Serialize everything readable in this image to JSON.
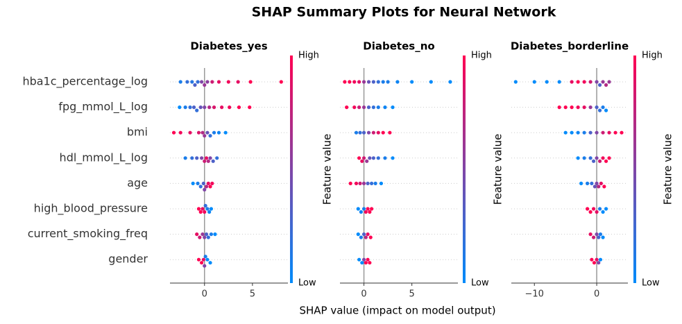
{
  "title": "SHAP Summary Plots for Neural Network",
  "xlabel": "SHAP value (impact on model output)",
  "features": [
    "hba1c_percentage_log",
    "fpg_mmol_L_log",
    "bmi",
    "hdl_mmol_L_log",
    "age",
    "high_blood_pressure",
    "current_smoking_freq",
    "gender"
  ],
  "colorbar": {
    "label": "Feature value",
    "high": "High",
    "low": "Low",
    "colormap": [
      "#008bfb",
      "#ff0052"
    ]
  },
  "chart_data": [
    {
      "type": "beeswarm",
      "title": "Diabetes_yes",
      "xlim": [
        -3.6,
        8.7
      ],
      "xticks": [
        0,
        5
      ],
      "series": [
        {
          "shap": [
            -2.5,
            -1.8,
            -1.3,
            -1,
            -0.7,
            -0.3,
            0,
            0.3,
            0.8,
            1.5,
            2.5,
            3.5,
            4.8,
            8
          ],
          "feature_value": [
            0.1,
            0.2,
            0.15,
            0.3,
            0.2,
            0.5,
            0.6,
            0.55,
            0.8,
            0.9,
            0.95,
            0.9,
            1,
            1
          ]
        },
        {
          "shap": [
            -2.6,
            -2,
            -1.5,
            -1.1,
            -0.8,
            -0.4,
            0,
            0.5,
            1,
            1.8,
            2.6,
            3.6,
            4.7
          ],
          "feature_value": [
            0,
            0.1,
            0.2,
            0.3,
            0.2,
            0.4,
            0.5,
            0.7,
            0.85,
            0.9,
            0.95,
            1,
            1
          ]
        },
        {
          "shap": [
            -3.2,
            -2.5,
            -1.5,
            -0.6,
            -0.2,
            0,
            0.3,
            0.6,
            1,
            1.5,
            2.2
          ],
          "feature_value": [
            1,
            0.95,
            0.9,
            0.85,
            0.7,
            0.6,
            0.4,
            0.2,
            0.1,
            0.05,
            0
          ]
        },
        {
          "shap": [
            -2,
            -1.3,
            -0.8,
            -0.3,
            0,
            0.2,
            0.4,
            0.6,
            0.9,
            1.3
          ],
          "feature_value": [
            0.1,
            0.2,
            0.3,
            0.5,
            0.8,
            0.9,
            0.7,
            0.5,
            0.3,
            0.2
          ]
        },
        {
          "shap": [
            -1.2,
            -0.7,
            -0.4,
            -0.1,
            0,
            0.2,
            0.4,
            0.6,
            0.8
          ],
          "feature_value": [
            0,
            0.1,
            0.2,
            0.3,
            0.5,
            0.7,
            0.9,
            1,
            0.95
          ]
        },
        {
          "shap": [
            -0.6,
            -0.4,
            -0.2,
            0,
            0.1,
            0.3,
            0.5,
            0.7
          ],
          "feature_value": [
            1,
            1,
            0.9,
            0.95,
            0.2,
            0.1,
            0.05,
            0
          ]
        },
        {
          "shap": [
            -0.8,
            -0.5,
            -0.2,
            0,
            0.2,
            0.4,
            0.7,
            1.1
          ],
          "feature_value": [
            0.9,
            0.8,
            0.6,
            0.5,
            0.3,
            0.2,
            0.1,
            0
          ]
        },
        {
          "shap": [
            -0.6,
            -0.3,
            -0.1,
            0,
            0.1,
            0.3,
            0.6
          ],
          "feature_value": [
            1,
            1,
            0.9,
            0.5,
            0.1,
            0,
            0
          ]
        }
      ]
    },
    {
      "type": "beeswarm",
      "title": "Diabetes_no",
      "xlim": [
        -2.5,
        9.8
      ],
      "xticks": [
        0,
        5
      ],
      "series": [
        {
          "shap": [
            -2,
            -1.5,
            -1,
            -0.5,
            0,
            0.5,
            1,
            1.5,
            2,
            2.5,
            3.5,
            5,
            7,
            9
          ],
          "feature_value": [
            1,
            1,
            0.95,
            0.9,
            0.6,
            0.4,
            0.3,
            0.2,
            0.1,
            0.1,
            0.05,
            0,
            0,
            0
          ]
        },
        {
          "shap": [
            -1.8,
            -1,
            -0.5,
            0,
            0.5,
            1,
            1.5,
            2.2,
            3
          ],
          "feature_value": [
            1,
            0.95,
            0.8,
            0.6,
            0.3,
            0.2,
            0.1,
            0.05,
            0
          ]
        },
        {
          "shap": [
            -0.8,
            -0.4,
            0,
            0.5,
            1,
            1.5,
            2,
            2.7
          ],
          "feature_value": [
            0.1,
            0.2,
            0.3,
            0.5,
            0.8,
            0.9,
            1,
            1
          ]
        },
        {
          "shap": [
            -0.5,
            -0.2,
            0,
            0.3,
            0.6,
            1,
            1.5,
            2.2,
            3
          ],
          "feature_value": [
            1,
            0.9,
            0.8,
            0.6,
            0.4,
            0.3,
            0.2,
            0.1,
            0
          ]
        },
        {
          "shap": [
            -1.4,
            -0.8,
            -0.4,
            0,
            0.4,
            0.8,
            1.2,
            1.8
          ],
          "feature_value": [
            1,
            0.95,
            0.8,
            0.6,
            0.3,
            0.2,
            0.1,
            0
          ]
        },
        {
          "shap": [
            -0.6,
            -0.3,
            0,
            0.2,
            0.4,
            0.6,
            0.8
          ],
          "feature_value": [
            0,
            0.05,
            0.1,
            0.95,
            1,
            1,
            1
          ]
        },
        {
          "shap": [
            -0.6,
            -0.3,
            0,
            0.2,
            0.4,
            0.7
          ],
          "feature_value": [
            0,
            0.1,
            0.3,
            0.7,
            0.9,
            1
          ]
        },
        {
          "shap": [
            -0.5,
            -0.2,
            0,
            0.2,
            0.4,
            0.6
          ],
          "feature_value": [
            0,
            0,
            0.5,
            1,
            1,
            1
          ]
        }
      ]
    },
    {
      "type": "beeswarm",
      "title": "Diabetes_borderline",
      "xlim": [
        -13.7,
        5
      ],
      "xticks": [
        {
          "value": -10,
          "label": "−10"
        },
        0
      ],
      "series": [
        {
          "shap": [
            -13,
            -10,
            -8,
            -6,
            -4,
            -3,
            -2,
            -1,
            0,
            0.5,
            1,
            1.5,
            2
          ],
          "feature_value": [
            0,
            0,
            0,
            0,
            0.9,
            1,
            0.95,
            0.8,
            0.5,
            0.3,
            0.6,
            0.7,
            0.6
          ]
        },
        {
          "shap": [
            -6,
            -5,
            -4,
            -3,
            -2,
            -1,
            0,
            0.5,
            1,
            1.5
          ],
          "feature_value": [
            1,
            1,
            1,
            0.95,
            0.9,
            0.6,
            0.3,
            0.2,
            0.1,
            0
          ]
        },
        {
          "shap": [
            -5,
            -4,
            -3,
            -2,
            -1,
            0,
            1,
            2,
            3,
            4
          ],
          "feature_value": [
            0,
            0,
            0.05,
            0.1,
            0.3,
            0.5,
            0.8,
            0.9,
            1,
            1
          ]
        },
        {
          "shap": [
            -3,
            -2,
            -1,
            -0.5,
            0,
            0.5,
            1,
            1.5,
            2
          ],
          "feature_value": [
            0,
            0.1,
            0.2,
            0.3,
            0.5,
            0.8,
            0.95,
            1,
            1
          ]
        },
        {
          "shap": [
            -2.5,
            -1.5,
            -0.8,
            -0.3,
            0,
            0.3,
            0.7,
            1.2
          ],
          "feature_value": [
            0,
            0.1,
            0.2,
            0.4,
            0.5,
            0.7,
            0.9,
            1
          ]
        },
        {
          "shap": [
            -1.5,
            -1,
            -0.5,
            0,
            0.5,
            1,
            1.5
          ],
          "feature_value": [
            1,
            1,
            0.95,
            0.9,
            0.1,
            0,
            0
          ]
        },
        {
          "shap": [
            -1,
            -0.5,
            0,
            0.3,
            0.6,
            1
          ],
          "feature_value": [
            0.9,
            0.8,
            0.5,
            0.3,
            0.1,
            0
          ]
        },
        {
          "shap": [
            -0.8,
            -0.4,
            0,
            0.3,
            0.6
          ],
          "feature_value": [
            1,
            1,
            0.9,
            0.5,
            0
          ]
        }
      ]
    }
  ]
}
